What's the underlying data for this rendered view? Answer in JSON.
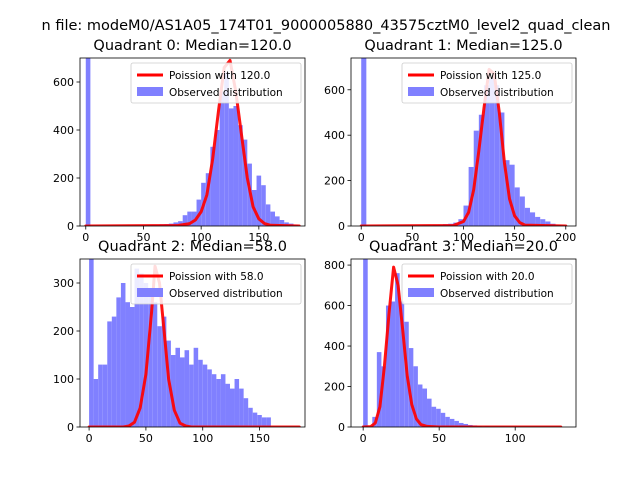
{
  "figure_title": "n file: modeM0/AS1A05_174T01_9000005880_43575cztM0_level2_quad_clean",
  "chart_data": [
    {
      "type": "bar",
      "title": "Quadrant 0: Median=120.0",
      "xlabel": "",
      "ylabel": "",
      "xlim": [
        -5,
        190
      ],
      "ylim": [
        0,
        700
      ],
      "xticks": [
        0,
        50,
        100,
        150
      ],
      "yticks": [
        0,
        200,
        400,
        600
      ],
      "legend_position": "upper-right",
      "median": 120,
      "poisson_label": "Poission with 120.0",
      "observed_label": "Observed distribution",
      "bin_width": 4,
      "bins": [
        {
          "x": 0,
          "y": 700
        },
        {
          "x": 48,
          "y": 3
        },
        {
          "x": 52,
          "y": 3
        },
        {
          "x": 56,
          "y": 5
        },
        {
          "x": 60,
          "y": 5
        },
        {
          "x": 64,
          "y": 7
        },
        {
          "x": 68,
          "y": 8
        },
        {
          "x": 72,
          "y": 10
        },
        {
          "x": 76,
          "y": 15
        },
        {
          "x": 80,
          "y": 20
        },
        {
          "x": 84,
          "y": 45
        },
        {
          "x": 88,
          "y": 60
        },
        {
          "x": 92,
          "y": 60
        },
        {
          "x": 96,
          "y": 110
        },
        {
          "x": 100,
          "y": 180
        },
        {
          "x": 104,
          "y": 220
        },
        {
          "x": 108,
          "y": 330
        },
        {
          "x": 112,
          "y": 400
        },
        {
          "x": 116,
          "y": 560
        },
        {
          "x": 120,
          "y": 640
        },
        {
          "x": 124,
          "y": 490
        },
        {
          "x": 128,
          "y": 500
        },
        {
          "x": 132,
          "y": 420
        },
        {
          "x": 136,
          "y": 360
        },
        {
          "x": 140,
          "y": 260
        },
        {
          "x": 144,
          "y": 150
        },
        {
          "x": 148,
          "y": 210
        },
        {
          "x": 152,
          "y": 170
        },
        {
          "x": 156,
          "y": 90
        },
        {
          "x": 160,
          "y": 60
        },
        {
          "x": 164,
          "y": 40
        },
        {
          "x": 168,
          "y": 25
        },
        {
          "x": 172,
          "y": 15
        },
        {
          "x": 176,
          "y": 10
        },
        {
          "x": 180,
          "y": 5
        }
      ],
      "fit_curve": [
        [
          0,
          0
        ],
        [
          80,
          2
        ],
        [
          90,
          10
        ],
        [
          95,
          25
        ],
        [
          100,
          60
        ],
        [
          105,
          130
        ],
        [
          110,
          280
        ],
        [
          115,
          480
        ],
        [
          120,
          660
        ],
        [
          125,
          690
        ],
        [
          130,
          560
        ],
        [
          135,
          380
        ],
        [
          140,
          200
        ],
        [
          145,
          80
        ],
        [
          150,
          30
        ],
        [
          155,
          10
        ],
        [
          160,
          3
        ],
        [
          185,
          0
        ]
      ]
    },
    {
      "type": "bar",
      "title": "Quadrant 1: Median=125.0",
      "xlabel": "",
      "ylabel": "",
      "xlim": [
        -10,
        210
      ],
      "ylim": [
        0,
        740
      ],
      "xticks": [
        0,
        50,
        100,
        150,
        200
      ],
      "yticks": [
        0,
        200,
        400,
        600
      ],
      "legend_position": "upper-right",
      "median": 125,
      "poisson_label": "Poission with 125.0",
      "observed_label": "Observed distribution",
      "bin_width": 5,
      "bins": [
        {
          "x": 0,
          "y": 740
        },
        {
          "x": 60,
          "y": 3
        },
        {
          "x": 65,
          "y": 3
        },
        {
          "x": 70,
          "y": 5
        },
        {
          "x": 75,
          "y": 6
        },
        {
          "x": 80,
          "y": 8
        },
        {
          "x": 85,
          "y": 10
        },
        {
          "x": 90,
          "y": 15
        },
        {
          "x": 95,
          "y": 30
        },
        {
          "x": 100,
          "y": 90
        },
        {
          "x": 105,
          "y": 260
        },
        {
          "x": 110,
          "y": 420
        },
        {
          "x": 115,
          "y": 490
        },
        {
          "x": 120,
          "y": 620
        },
        {
          "x": 125,
          "y": 650
        },
        {
          "x": 130,
          "y": 620
        },
        {
          "x": 135,
          "y": 500
        },
        {
          "x": 140,
          "y": 290
        },
        {
          "x": 145,
          "y": 270
        },
        {
          "x": 150,
          "y": 170
        },
        {
          "x": 155,
          "y": 130
        },
        {
          "x": 160,
          "y": 80
        },
        {
          "x": 165,
          "y": 60
        },
        {
          "x": 170,
          "y": 40
        },
        {
          "x": 175,
          "y": 30
        },
        {
          "x": 180,
          "y": 20
        },
        {
          "x": 185,
          "y": 10
        },
        {
          "x": 190,
          "y": 5
        },
        {
          "x": 195,
          "y": 3
        }
      ],
      "fit_curve": [
        [
          0,
          0
        ],
        [
          90,
          2
        ],
        [
          100,
          20
        ],
        [
          105,
          60
        ],
        [
          110,
          160
        ],
        [
          115,
          330
        ],
        [
          120,
          520
        ],
        [
          125,
          690
        ],
        [
          130,
          670
        ],
        [
          135,
          500
        ],
        [
          140,
          280
        ],
        [
          145,
          120
        ],
        [
          150,
          45
        ],
        [
          155,
          15
        ],
        [
          160,
          4
        ],
        [
          200,
          0
        ]
      ]
    },
    {
      "type": "bar",
      "title": "Quadrant 2: Median=58.0",
      "xlabel": "",
      "ylabel": "",
      "xlim": [
        -8,
        190
      ],
      "ylim": [
        0,
        350
      ],
      "xticks": [
        0,
        50,
        100,
        150
      ],
      "yticks": [
        0,
        100,
        200,
        300
      ],
      "legend_position": "upper-right",
      "median": 58,
      "poisson_label": "Poission with 58.0",
      "observed_label": "Observed distribution",
      "bin_width": 4,
      "bins": [
        {
          "x": 0,
          "y": 350
        },
        {
          "x": 4,
          "y": 100
        },
        {
          "x": 8,
          "y": 130
        },
        {
          "x": 12,
          "y": 130
        },
        {
          "x": 16,
          "y": 220
        },
        {
          "x": 20,
          "y": 230
        },
        {
          "x": 24,
          "y": 270
        },
        {
          "x": 28,
          "y": 300
        },
        {
          "x": 32,
          "y": 260
        },
        {
          "x": 36,
          "y": 250
        },
        {
          "x": 40,
          "y": 330
        },
        {
          "x": 44,
          "y": 320
        },
        {
          "x": 48,
          "y": 300
        },
        {
          "x": 52,
          "y": 280
        },
        {
          "x": 56,
          "y": 260
        },
        {
          "x": 60,
          "y": 210
        },
        {
          "x": 64,
          "y": 230
        },
        {
          "x": 68,
          "y": 180
        },
        {
          "x": 72,
          "y": 150
        },
        {
          "x": 76,
          "y": 165
        },
        {
          "x": 80,
          "y": 145
        },
        {
          "x": 84,
          "y": 160
        },
        {
          "x": 88,
          "y": 130
        },
        {
          "x": 92,
          "y": 165
        },
        {
          "x": 96,
          "y": 140
        },
        {
          "x": 100,
          "y": 130
        },
        {
          "x": 104,
          "y": 120
        },
        {
          "x": 108,
          "y": 110
        },
        {
          "x": 112,
          "y": 100
        },
        {
          "x": 116,
          "y": 110
        },
        {
          "x": 120,
          "y": 90
        },
        {
          "x": 124,
          "y": 80
        },
        {
          "x": 128,
          "y": 100
        },
        {
          "x": 132,
          "y": 80
        },
        {
          "x": 136,
          "y": 60
        },
        {
          "x": 140,
          "y": 40
        },
        {
          "x": 144,
          "y": 30
        },
        {
          "x": 148,
          "y": 25
        },
        {
          "x": 152,
          "y": 20
        },
        {
          "x": 156,
          "y": 20
        }
      ],
      "fit_curve": [
        [
          0,
          0
        ],
        [
          30,
          0
        ],
        [
          35,
          2
        ],
        [
          40,
          10
        ],
        [
          45,
          40
        ],
        [
          50,
          110
        ],
        [
          55,
          240
        ],
        [
          58,
          335
        ],
        [
          62,
          300
        ],
        [
          66,
          200
        ],
        [
          70,
          100
        ],
        [
          75,
          35
        ],
        [
          80,
          8
        ],
        [
          85,
          2
        ],
        [
          90,
          0
        ],
        [
          185,
          0
        ]
      ]
    },
    {
      "type": "bar",
      "title": "Quadrant 3: Median=20.0",
      "xlabel": "",
      "ylabel": "",
      "xlim": [
        -8,
        140
      ],
      "ylim": [
        0,
        830
      ],
      "xticks": [
        0,
        50,
        100
      ],
      "yticks": [
        0,
        200,
        400,
        600,
        800
      ],
      "legend_position": "upper-right",
      "median": 20,
      "poisson_label": "Poission with 20.0",
      "observed_label": "Observed distribution",
      "bin_width": 3,
      "bins": [
        {
          "x": 0,
          "y": 830
        },
        {
          "x": 6,
          "y": 50
        },
        {
          "x": 9,
          "y": 370
        },
        {
          "x": 12,
          "y": 300
        },
        {
          "x": 15,
          "y": 600
        },
        {
          "x": 18,
          "y": 620
        },
        {
          "x": 21,
          "y": 760
        },
        {
          "x": 24,
          "y": 620
        },
        {
          "x": 27,
          "y": 520
        },
        {
          "x": 30,
          "y": 390
        },
        {
          "x": 33,
          "y": 300
        },
        {
          "x": 36,
          "y": 210
        },
        {
          "x": 39,
          "y": 190
        },
        {
          "x": 42,
          "y": 140
        },
        {
          "x": 45,
          "y": 100
        },
        {
          "x": 48,
          "y": 90
        },
        {
          "x": 51,
          "y": 70
        },
        {
          "x": 54,
          "y": 50
        },
        {
          "x": 57,
          "y": 40
        },
        {
          "x": 60,
          "y": 30
        },
        {
          "x": 63,
          "y": 20
        },
        {
          "x": 66,
          "y": 15
        },
        {
          "x": 69,
          "y": 10
        },
        {
          "x": 72,
          "y": 8
        },
        {
          "x": 75,
          "y": 5
        },
        {
          "x": 80,
          "y": 4
        },
        {
          "x": 90,
          "y": 3
        },
        {
          "x": 100,
          "y": 2
        }
      ],
      "fit_curve": [
        [
          0,
          0
        ],
        [
          5,
          2
        ],
        [
          8,
          20
        ],
        [
          11,
          100
        ],
        [
          14,
          300
        ],
        [
          17,
          560
        ],
        [
          20,
          790
        ],
        [
          23,
          700
        ],
        [
          26,
          480
        ],
        [
          29,
          250
        ],
        [
          32,
          110
        ],
        [
          35,
          40
        ],
        [
          38,
          12
        ],
        [
          42,
          3
        ],
        [
          50,
          0
        ],
        [
          130,
          0
        ]
      ]
    }
  ],
  "colors": {
    "fit_line": "#ff0000",
    "observed_bars": "#8080ff",
    "axes": "#000000",
    "background": "#ffffff"
  }
}
